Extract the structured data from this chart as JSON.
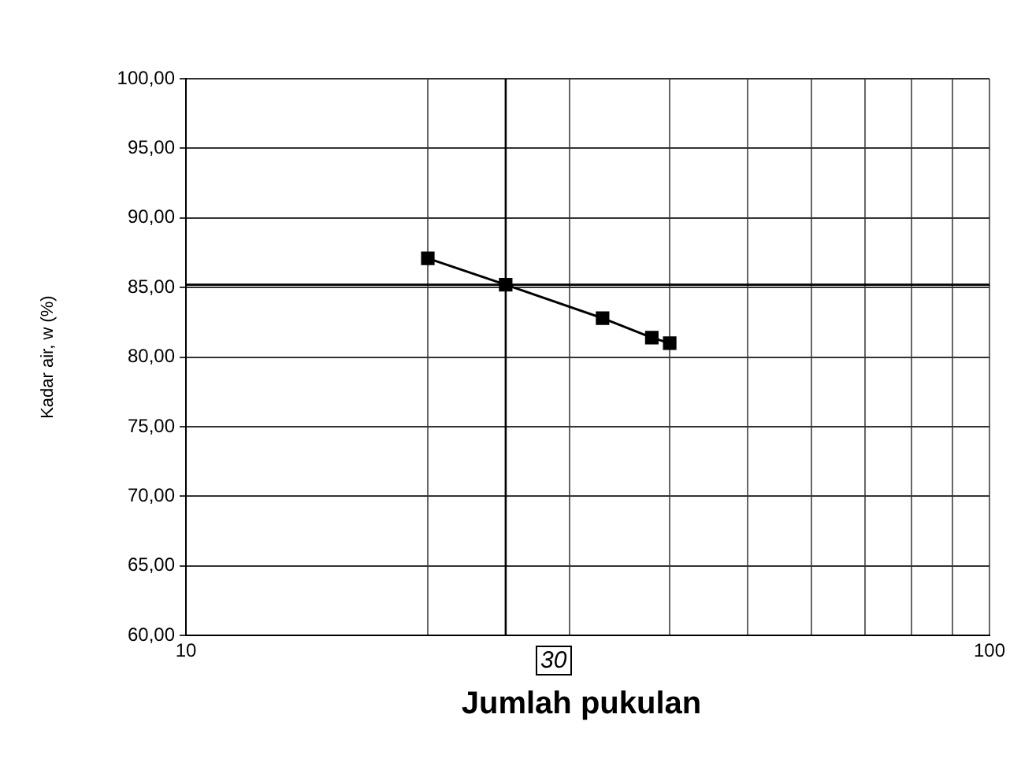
{
  "chart_data": {
    "type": "line",
    "xlabel": "Jumlah pukulan",
    "ylabel": "Kadar air, w (%)",
    "x": [
      20,
      25,
      33,
      38,
      40
    ],
    "series": [
      {
        "color": "#000000",
        "values": [
          87.1,
          85.2,
          82.8,
          81.4,
          81.0
        ]
      }
    ],
    "log": "x",
    "xlim": [
      10,
      100
    ],
    "xticks": [
      10,
      {
        "value": 20,
        "label": null
      },
      {
        "value": 30,
        "label": null
      },
      {
        "value": 40,
        "label": null
      },
      {
        "value": 50,
        "label": null
      },
      {
        "value": 60,
        "label": null
      },
      {
        "value": 70,
        "label": null
      },
      {
        "value": 80,
        "label": null
      },
      {
        "value": 90,
        "label": null
      },
      100
    ],
    "ylim": [
      60,
      100
    ],
    "yticks": [
      {
        "value": 60,
        "label": "60,00"
      },
      {
        "value": 65,
        "label": "65,00"
      },
      {
        "value": 70,
        "label": "70,00"
      },
      {
        "value": 75,
        "label": "75,00"
      },
      {
        "value": 80,
        "label": "80,00"
      },
      {
        "value": 85,
        "label": "85,00"
      },
      {
        "value": 90,
        "label": "90,00"
      },
      {
        "value": 95,
        "label": "95,00"
      },
      {
        "value": 100,
        "label": "100,00"
      }
    ],
    "ref_lines": [
      {
        "axis": "x",
        "value": 25,
        "color": "#000000"
      },
      {
        "axis": "y",
        "value": 85.2,
        "color": "#000000"
      }
    ],
    "annotations": [
      "30"
    ],
    "grid": true,
    "marker": "square",
    "line_style": "solid",
    "legend": false
  }
}
